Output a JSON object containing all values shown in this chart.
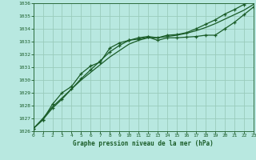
{
  "title": "Graphe pression niveau de la mer (hPa)",
  "bg_color": "#b8e8e0",
  "grid_color": "#99ccbb",
  "line_color": "#1a5c28",
  "xlim": [
    0,
    23
  ],
  "ylim": [
    1026,
    1036
  ],
  "xticks": [
    0,
    1,
    2,
    3,
    4,
    5,
    6,
    7,
    8,
    9,
    10,
    11,
    12,
    13,
    14,
    15,
    16,
    17,
    18,
    19,
    20,
    21,
    22,
    23
  ],
  "yticks": [
    1026,
    1027,
    1028,
    1029,
    1030,
    1031,
    1032,
    1033,
    1034,
    1035,
    1036
  ],
  "series1_x": [
    0,
    1,
    2,
    3,
    4,
    5,
    6,
    7,
    8,
    9,
    10,
    11,
    12,
    13,
    14,
    15,
    16,
    17,
    18,
    19,
    20,
    21,
    22,
    23
  ],
  "series1_y": [
    1026.2,
    1026.9,
    1028.1,
    1029.0,
    1029.5,
    1030.5,
    1031.1,
    1031.4,
    1032.5,
    1032.9,
    1033.1,
    1033.2,
    1033.35,
    1033.1,
    1033.3,
    1033.3,
    1033.35,
    1033.4,
    1033.5,
    1033.5,
    1034.0,
    1034.5,
    1035.1,
    1035.7
  ],
  "series2_x": [
    0,
    1,
    2,
    3,
    4,
    5,
    6,
    7,
    8,
    9,
    10,
    11,
    12,
    13,
    14,
    15,
    16,
    17,
    18,
    19,
    20,
    21,
    22,
    23
  ],
  "series2_y": [
    1026.2,
    1027.0,
    1027.9,
    1028.6,
    1029.3,
    1030.0,
    1030.6,
    1031.2,
    1031.8,
    1032.3,
    1032.8,
    1033.1,
    1033.3,
    1033.3,
    1033.4,
    1033.5,
    1033.65,
    1033.85,
    1034.1,
    1034.4,
    1034.75,
    1035.1,
    1035.45,
    1035.9
  ],
  "series3_x": [
    0,
    1,
    2,
    3,
    4,
    5,
    6,
    7,
    8,
    9,
    10,
    11,
    12,
    13,
    14,
    15,
    16,
    17,
    18,
    19,
    20,
    21,
    22,
    23
  ],
  "series3_y": [
    1026.2,
    1026.9,
    1027.8,
    1028.5,
    1029.3,
    1030.1,
    1030.8,
    1031.5,
    1032.2,
    1032.7,
    1033.1,
    1033.3,
    1033.4,
    1033.3,
    1033.5,
    1033.55,
    1033.7,
    1034.0,
    1034.35,
    1034.7,
    1035.15,
    1035.5,
    1035.9,
    1036.2
  ]
}
